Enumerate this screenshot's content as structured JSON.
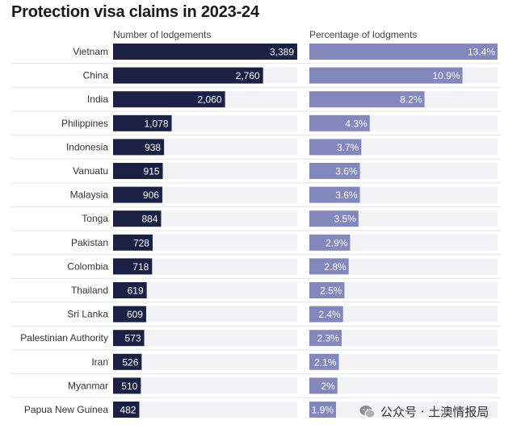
{
  "chart_data": {
    "type": "bar",
    "title": "Protection visa claims in 2023-24",
    "categories": [
      "Vietnam",
      "China",
      "India",
      "Philippines",
      "Indonesia",
      "Vanuatu",
      "Malaysia",
      "Tonga",
      "Pakistan",
      "Colombia",
      "Thailand",
      "Sri Lanka",
      "Palestinian Authority",
      "Iran",
      "Myanmar",
      "Papua New Guinea"
    ],
    "series": [
      {
        "name": "Number of lodgements",
        "values": [
          3389,
          2760,
          2060,
          1078,
          938,
          915,
          906,
          884,
          728,
          718,
          619,
          609,
          573,
          526,
          510,
          482
        ],
        "labels": [
          "3,389",
          "2,760",
          "2,060",
          "1,078",
          "938",
          "915",
          "906",
          "884",
          "728",
          "718",
          "619",
          "609",
          "573",
          "526",
          "510",
          "482"
        ],
        "color": "#1b2145",
        "max": 3389
      },
      {
        "name": "Percentage of lodgments",
        "values": [
          13.4,
          10.9,
          8.2,
          4.3,
          3.7,
          3.6,
          3.6,
          3.5,
          2.9,
          2.8,
          2.5,
          2.4,
          2.3,
          2.1,
          2.0,
          1.9
        ],
        "labels": [
          "13.4%",
          "10.9%",
          "8.2%",
          "4.3%",
          "3.7%",
          "3.6%",
          "3.6%",
          "3.5%",
          "2.9%",
          "2.8%",
          "2.5%",
          "2.4%",
          "2.3%",
          "2.1%",
          "2%",
          "1.9%"
        ],
        "color": "#8287bd",
        "max": 13.4
      }
    ]
  },
  "watermark": {
    "text": "公众号 · 土澳情报局",
    "icon": "wechat-icon"
  }
}
